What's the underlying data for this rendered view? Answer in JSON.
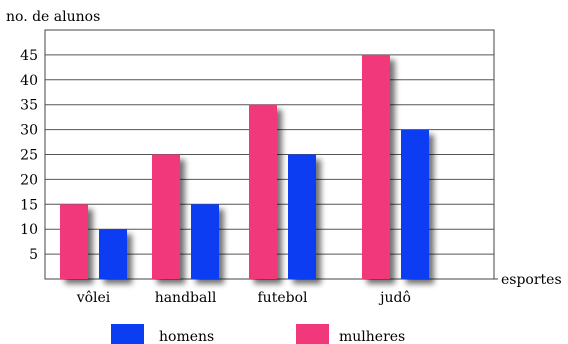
{
  "chart_data": {
    "type": "bar",
    "title": "",
    "ylabel": "no. de alunos",
    "xlabel": "esportes",
    "categories": [
      "vôlei",
      "handball",
      "futebol",
      "judô"
    ],
    "series": [
      {
        "name": "mulheres",
        "values": [
          15,
          25,
          35,
          45
        ],
        "color": "#f0387a"
      },
      {
        "name": "homens",
        "values": [
          10,
          15,
          25,
          30
        ],
        "color": "#0b3df2"
      }
    ],
    "yticks": [
      5,
      10,
      15,
      20,
      25,
      30,
      35,
      40,
      45
    ],
    "ylim": [
      0,
      50
    ],
    "grid": true,
    "legend_position": "bottom",
    "legend_order": [
      "homens",
      "mulheres"
    ]
  }
}
